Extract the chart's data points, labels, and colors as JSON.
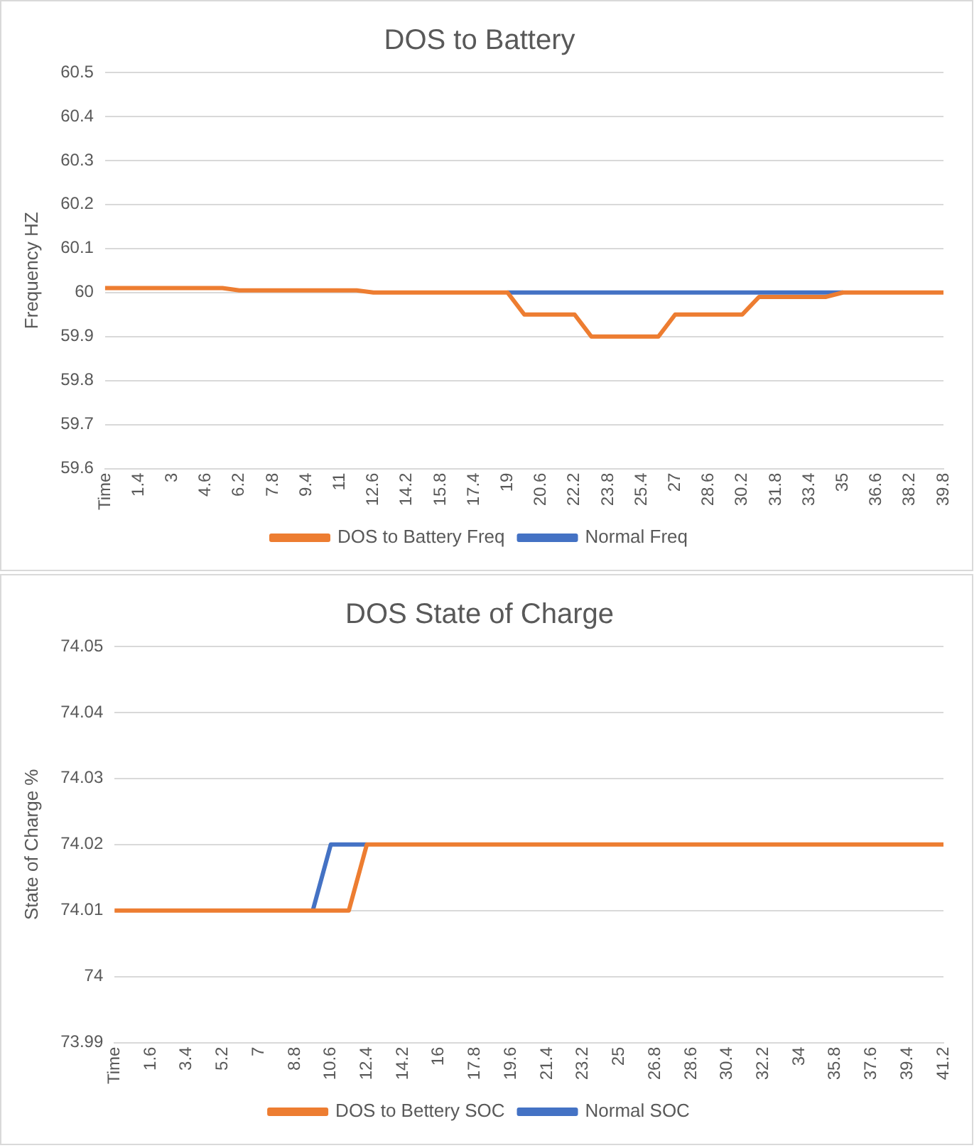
{
  "chart_data": [
    {
      "type": "line",
      "title": "DOS to Battery",
      "ylabel": "Frequency HZ",
      "categories": [
        "Time",
        null,
        "1.4",
        null,
        "3",
        null,
        "4.6",
        null,
        "6.2",
        null,
        "7.8",
        null,
        "9.4",
        null,
        "11",
        null,
        "12.6",
        null,
        "14.2",
        null,
        "15.8",
        null,
        "17.4",
        null,
        "19",
        null,
        "20.6",
        null,
        "22.2",
        null,
        "23.8",
        null,
        "25.4",
        null,
        "27",
        null,
        "28.6",
        null,
        "30.2",
        null,
        "31.8",
        null,
        "33.4",
        null,
        "35",
        null,
        "36.6",
        null,
        "38.2",
        null,
        "39.8"
      ],
      "series": [
        {
          "name": "Normal Freq",
          "color": "#4472c4",
          "values": [
            null,
            null,
            null,
            null,
            null,
            null,
            null,
            null,
            null,
            null,
            null,
            null,
            null,
            null,
            null,
            null,
            null,
            null,
            null,
            null,
            null,
            null,
            null,
            null,
            60,
            60,
            60,
            60,
            60,
            60,
            60,
            60,
            60,
            60,
            60,
            60,
            60,
            60,
            60,
            60,
            60,
            60,
            60,
            60,
            60,
            null,
            null,
            null,
            null,
            null,
            null
          ]
        },
        {
          "name": "DOS to Battery Freq",
          "color": "#ed7d31",
          "values": [
            60.01,
            60.01,
            60.01,
            60.01,
            60.01,
            60.01,
            60.01,
            60.01,
            60.005,
            60.005,
            60.005,
            60.005,
            60.005,
            60.005,
            60.005,
            60.005,
            60,
            60,
            60,
            60,
            60,
            60,
            60,
            60,
            60,
            59.95,
            59.95,
            59.95,
            59.95,
            59.9,
            59.9,
            59.9,
            59.9,
            59.9,
            59.95,
            59.95,
            59.95,
            59.95,
            59.95,
            59.99,
            59.99,
            59.99,
            59.99,
            59.99,
            60,
            60,
            60,
            60,
            60,
            60,
            60
          ]
        }
      ],
      "ylim": [
        59.6,
        60.5
      ],
      "yticks": [
        59.6,
        59.7,
        59.8,
        59.9,
        60,
        60.1,
        60.2,
        60.3,
        60.4,
        60.5
      ],
      "grid": "y",
      "legend": "bottom",
      "marker": "none",
      "line_style": "solid"
    },
    {
      "type": "line",
      "title": "DOS State of Charge",
      "ylabel": "State of Charge %",
      "categories": [
        "Time",
        null,
        "1.6",
        null,
        "3.4",
        null,
        "5.2",
        null,
        "7",
        null,
        "8.8",
        null,
        "10.6",
        null,
        "12.4",
        null,
        "14.2",
        null,
        "16",
        null,
        "17.8",
        null,
        "19.6",
        null,
        "21.4",
        null,
        "23.2",
        null,
        "25",
        null,
        "26.8",
        null,
        "28.6",
        null,
        "30.4",
        null,
        "32.2",
        null,
        "34",
        null,
        "35.8",
        null,
        "37.6",
        null,
        "39.4",
        null,
        "41.2"
      ],
      "series": [
        {
          "name": "Normal SOC",
          "color": "#4472c4",
          "values": [
            null,
            null,
            null,
            null,
            null,
            null,
            null,
            null,
            null,
            null,
            null,
            74.01,
            74.02,
            74.02,
            74.02,
            null,
            null,
            null,
            null,
            null,
            null,
            null,
            null,
            null,
            null,
            null,
            null,
            null,
            null,
            null,
            null,
            null,
            null,
            null,
            null,
            null,
            null,
            null,
            null,
            null,
            null,
            null,
            null,
            null,
            null,
            null,
            null
          ]
        },
        {
          "name": "DOS to Bettery SOC",
          "color": "#ed7d31",
          "values": [
            74.01,
            74.01,
            74.01,
            74.01,
            74.01,
            74.01,
            74.01,
            74.01,
            74.01,
            74.01,
            74.01,
            74.01,
            74.01,
            74.01,
            74.02,
            74.02,
            74.02,
            74.02,
            74.02,
            74.02,
            74.02,
            74.02,
            74.02,
            74.02,
            74.02,
            74.02,
            74.02,
            74.02,
            74.02,
            74.02,
            74.02,
            74.02,
            74.02,
            74.02,
            74.02,
            74.02,
            74.02,
            74.02,
            74.02,
            74.02,
            74.02,
            74.02,
            74.02,
            74.02,
            74.02,
            74.02,
            74.02
          ]
        }
      ],
      "ylim": [
        73.99,
        74.05
      ],
      "yticks": [
        73.99,
        74,
        74.01,
        74.02,
        74.03,
        74.04,
        74.05
      ],
      "grid": "y",
      "legend": "bottom",
      "marker": "none",
      "line_style": "solid"
    }
  ]
}
